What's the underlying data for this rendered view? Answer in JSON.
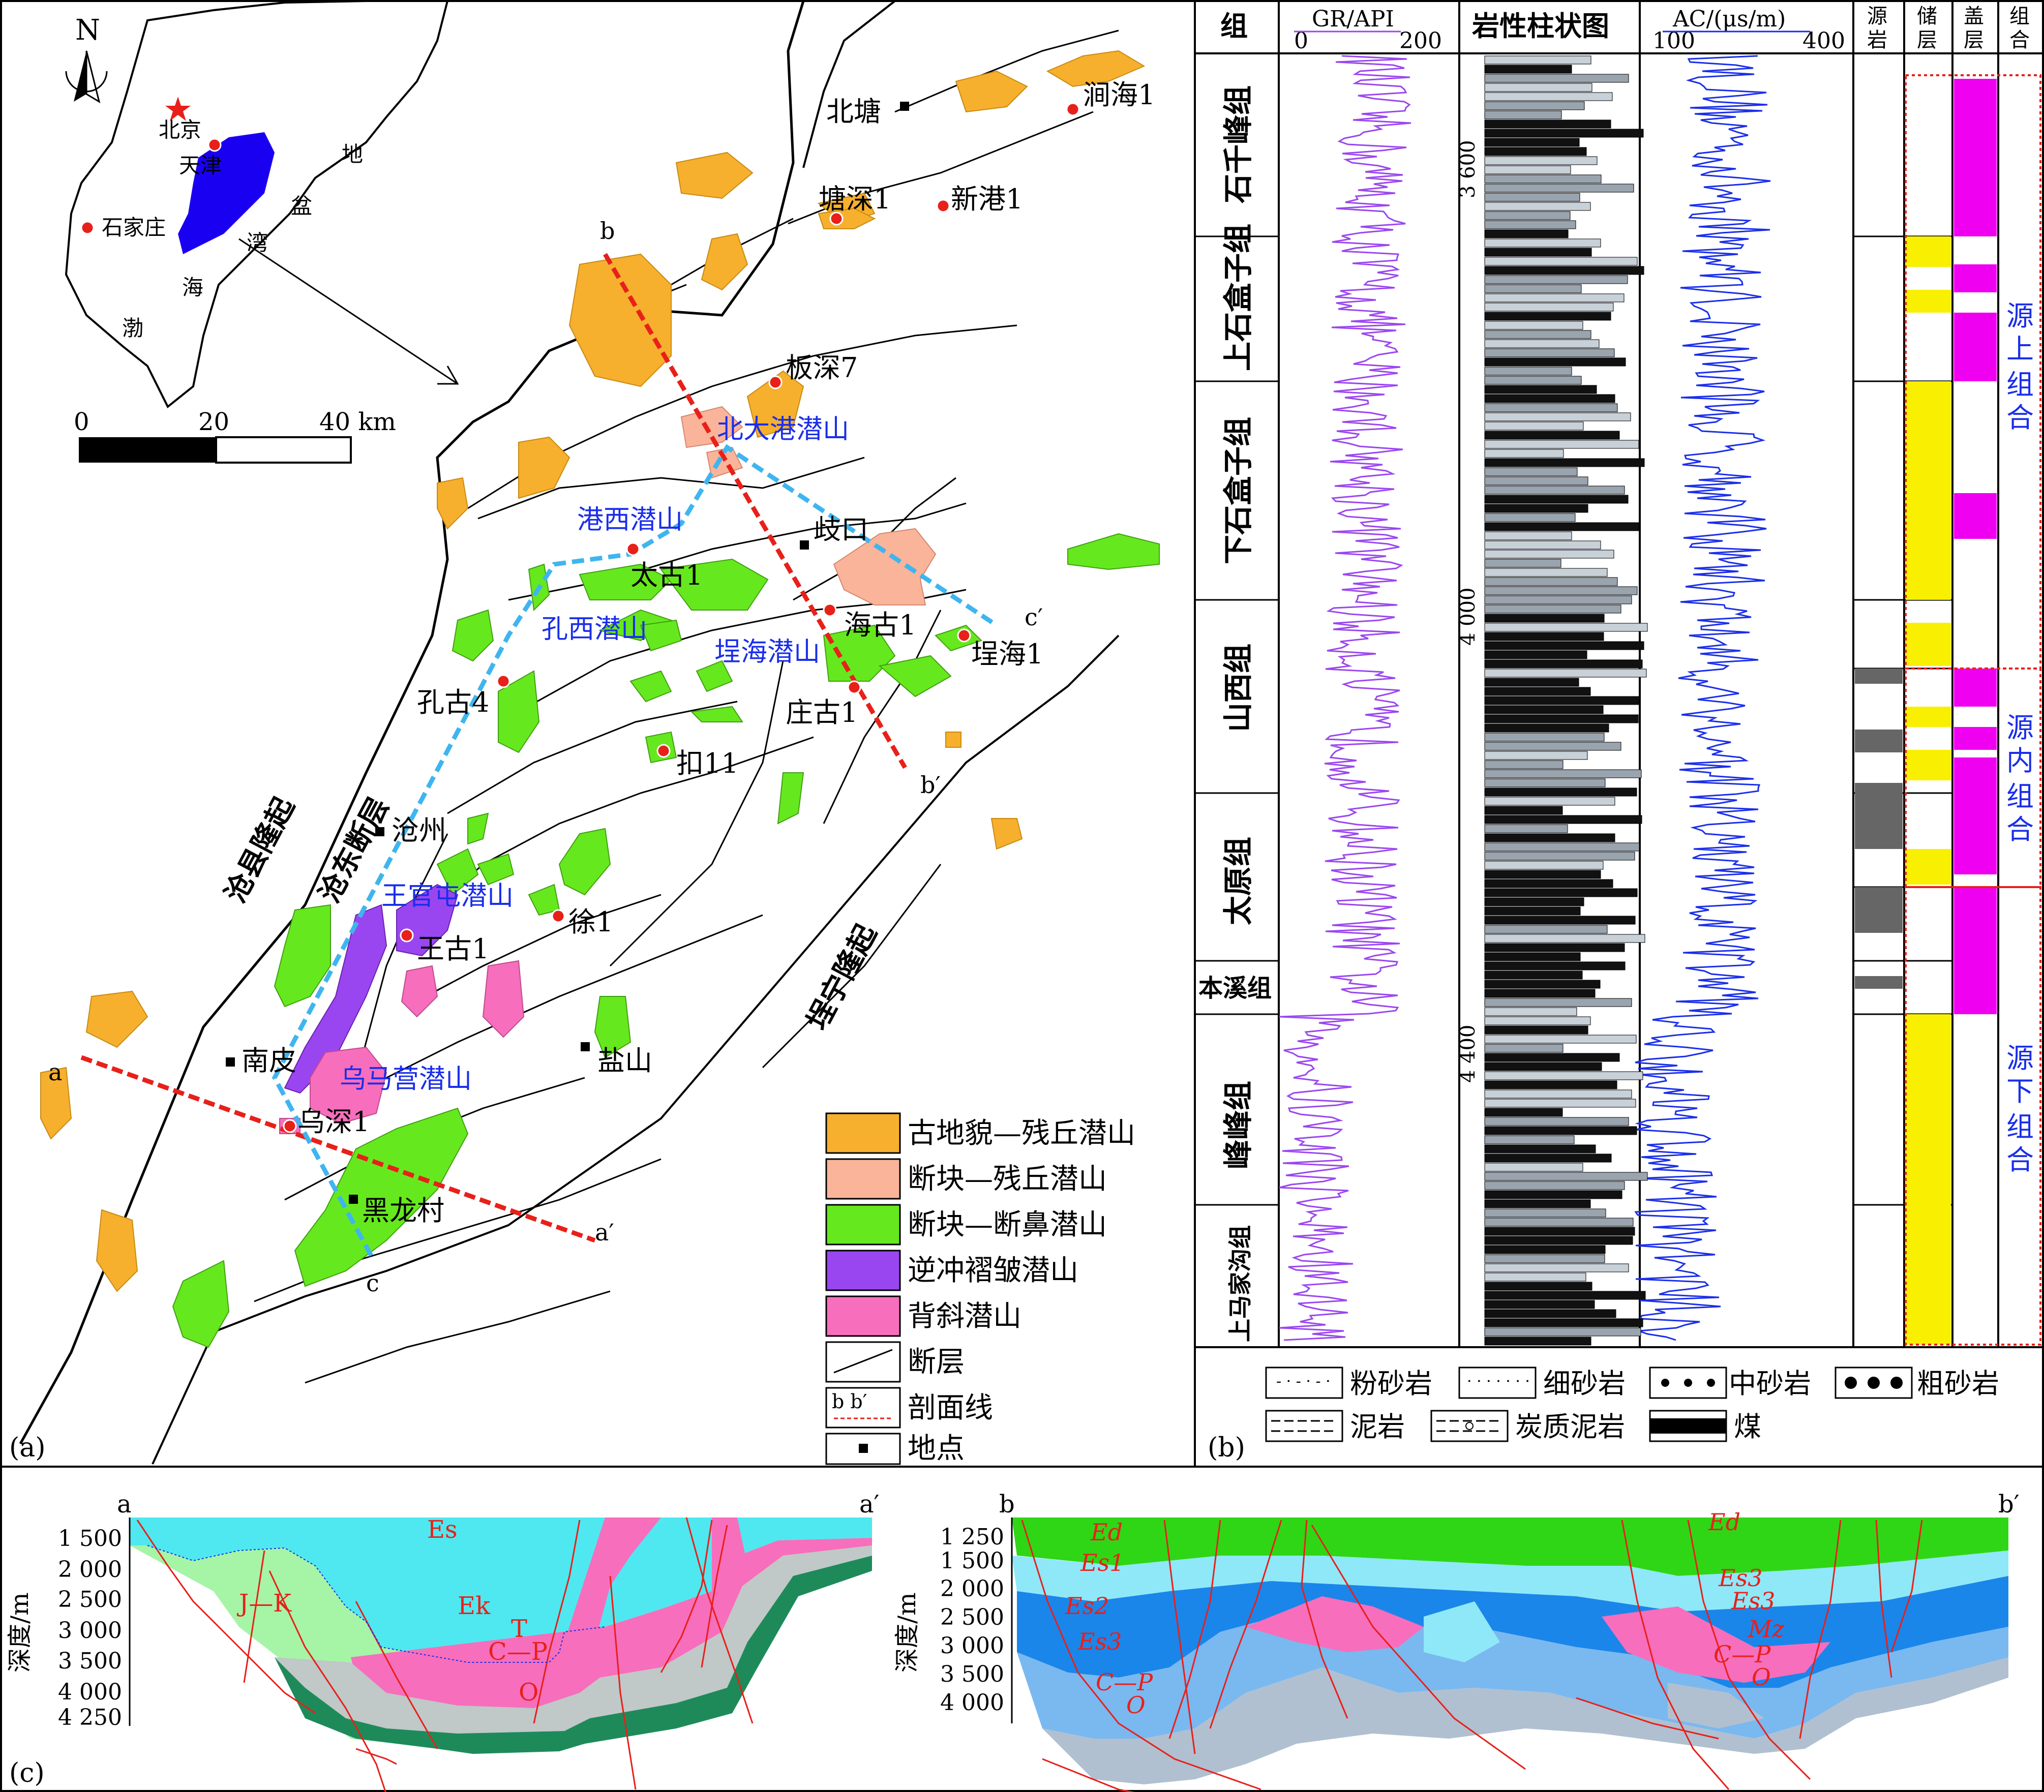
{
  "panel_a": {
    "panel_label": "(a)",
    "north": "N",
    "scale": {
      "t0": "0",
      "t1": "20",
      "t2": "40 km"
    },
    "inset": {
      "beijing": "北京",
      "tianjin": "天津",
      "shijiazhuang": "石家庄",
      "basin": [
        "渤",
        "海",
        "湾",
        "盆",
        "地"
      ]
    },
    "wells": {
      "jianhai1": "涧海1",
      "beitang": "北塘",
      "tangshen1": "塘深1",
      "xingang1": "新港1",
      "banshen7": "板深7",
      "taigu1": "太古1",
      "qikou": "歧口",
      "haigu1": "海古1",
      "chenghai1": "埕海1",
      "zhuanggu1": "庄古1",
      "kou11": "扣11",
      "konggu4": "孔古4",
      "cangzhou": "沧州",
      "xu1": "徐1",
      "wanggu1": "王古1",
      "nanpi": "南皮",
      "wushen1": "乌深1",
      "yanshan": "盐山",
      "heilongcun": "黑龙村"
    },
    "buried_hills": {
      "beidagang": "北大港潜山",
      "gangxi": "港西潜山",
      "kongxi": "孔西潜山",
      "chenghai": "埕海潜山",
      "wangguantun": "王官屯潜山",
      "wumaying": "乌马营潜山"
    },
    "regions": {
      "cangxian": "沧县隆起",
      "cangdong": "沧东断层",
      "chengning": "埕宁隆起"
    },
    "section_ends": {
      "a": "a",
      "a2": "a′",
      "b": "b",
      "b2": "b′",
      "c": "c",
      "c2": "c′"
    },
    "legend": [
      {
        "label": "古地貌—残丘潜山",
        "color": "#f7b02e"
      },
      {
        "label": "断块—残丘潜山",
        "color": "#f9b49a"
      },
      {
        "label": "断块—断鼻潜山",
        "color": "#66e81e"
      },
      {
        "label": "逆冲褶皱潜山",
        "color": "#9a46f0"
      },
      {
        "label": "背斜潜山",
        "color": "#f76ebc"
      },
      {
        "label": "断层",
        "symbol": "fault"
      },
      {
        "label": "剖面线",
        "symbol": "section",
        "inner": "b      b′"
      },
      {
        "label": "地点",
        "symbol": "site"
      }
    ]
  },
  "panel_b": {
    "panel_label": "(b)",
    "headers": {
      "formation": "组",
      "gr": "GR/API",
      "gr_min": "0",
      "gr_max": "200",
      "litho": "岩性柱状图",
      "ac": "AC/(μs/m)",
      "ac_min": "100",
      "ac_max": "400",
      "source": [
        "源",
        "岩"
      ],
      "reservoir": [
        "储",
        "层"
      ],
      "seal": [
        "盖",
        "层"
      ],
      "assemblage": [
        "组",
        "合"
      ]
    },
    "formations": [
      "石千峰组",
      "上石盒子组",
      "下石盒子组",
      "山西组",
      "太原组",
      "本溪组",
      "峰峰组",
      "上马家沟组"
    ],
    "depths": [
      "3 600",
      "4 000",
      "4 400"
    ],
    "assemblages": [
      [
        "源",
        "上",
        "组",
        "合"
      ],
      [
        "源",
        "内",
        "组",
        "合"
      ],
      [
        "源",
        "下",
        "组",
        "合"
      ]
    ],
    "lith_legend": [
      "粉砂岩",
      "细砂岩",
      "中砂岩",
      "粗砂岩",
      "泥岩",
      "炭质泥岩",
      "煤"
    ]
  },
  "panel_c": {
    "panel_label": "(c)",
    "left": {
      "ends": [
        "a",
        "a′"
      ],
      "axis_label": "深度/m",
      "ticks": [
        "1 500",
        "2 000",
        "2 500",
        "3 000",
        "3 500",
        "4 000",
        "4 250"
      ],
      "units": [
        "Es",
        "J—K",
        "Ek",
        "T",
        "C—P",
        "O"
      ]
    },
    "right": {
      "ends": [
        "b",
        "b′"
      ],
      "axis_label": "深度/m",
      "ticks": [
        "1 250",
        "1 500",
        "2 000",
        "2 500",
        "3 000",
        "3 500",
        "4 000"
      ],
      "units_left": [
        "Ed",
        "Es1",
        "Es2",
        "Es3",
        "C—P",
        "O"
      ],
      "units_right": [
        "Ed",
        "Es3",
        "Es3",
        "Mz",
        "C—P",
        "O"
      ]
    }
  },
  "colors": {
    "orange": "#f7b02e",
    "salmon": "#f9b49a",
    "green": "#66e81e",
    "purple": "#9a46f0",
    "pink": "#f76ebc",
    "blue_label": "#1a2eea",
    "section_red": "#e8201a",
    "section_blue": "#3fb5f0",
    "magenta": "#f000f0",
    "yellow": "#f8f000"
  }
}
